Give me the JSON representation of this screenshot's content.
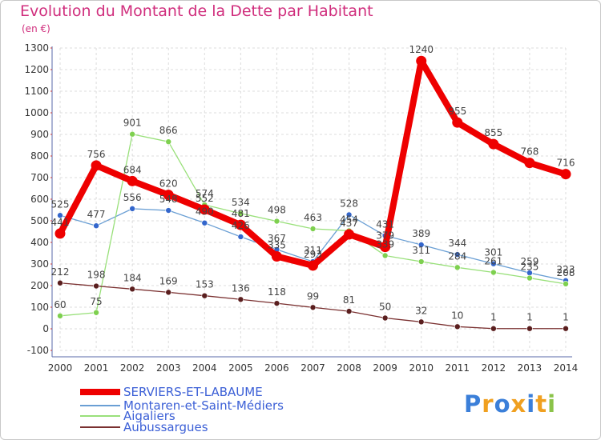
{
  "header": {
    "title": "Evolution du Montant de la Dette par Habitant",
    "subtitle": "(en €)"
  },
  "brand": {
    "name": "Proxiti",
    "letter_colors": [
      "#3b7fd9",
      "#f0a020",
      "#3b7fd9",
      "#f0a020",
      "#3b7fd9",
      "#f0a020",
      "#8bc34a"
    ]
  },
  "chart_data": {
    "type": "line",
    "x": [
      2000,
      2001,
      2002,
      2003,
      2004,
      2005,
      2006,
      2007,
      2008,
      2009,
      2010,
      2011,
      2012,
      2013,
      2014
    ],
    "ylim": [
      -100,
      1300
    ],
    "yticks": [
      -100,
      0,
      100,
      200,
      300,
      400,
      500,
      600,
      700,
      800,
      900,
      1000,
      1100,
      1200,
      1300
    ],
    "grid": true,
    "legend_position": "bottom",
    "series": [
      {
        "name": "SERVIERS-ET-LABAUME",
        "color": "#ee0000",
        "marker_color": "#ee0000",
        "values": [
          441,
          756,
          684,
          620,
          552,
          481,
          335,
          293,
          437,
          379,
          1240,
          955,
          855,
          768,
          716
        ]
      },
      {
        "name": "Montaren-et-Saint-Médiers",
        "color": "#6a9fd4",
        "marker_color": "#3366cc",
        "values": [
          525,
          477,
          556,
          548,
          490,
          426,
          367,
          311,
          528,
          431,
          389,
          344,
          301,
          259,
          223
        ]
      },
      {
        "name": "Aigaliers",
        "color": "#99e07a",
        "marker_color": "#7ed04f",
        "values": [
          60,
          75,
          901,
          866,
          574,
          534,
          498,
          463,
          454,
          339,
          311,
          284,
          261,
          235,
          208
        ]
      },
      {
        "name": "Aubussargues",
        "color": "#7a3030",
        "marker_color": "#5a1e1e",
        "values": [
          212,
          198,
          184,
          169,
          153,
          136,
          118,
          99,
          81,
          50,
          32,
          10,
          1,
          1,
          1
        ]
      }
    ]
  }
}
